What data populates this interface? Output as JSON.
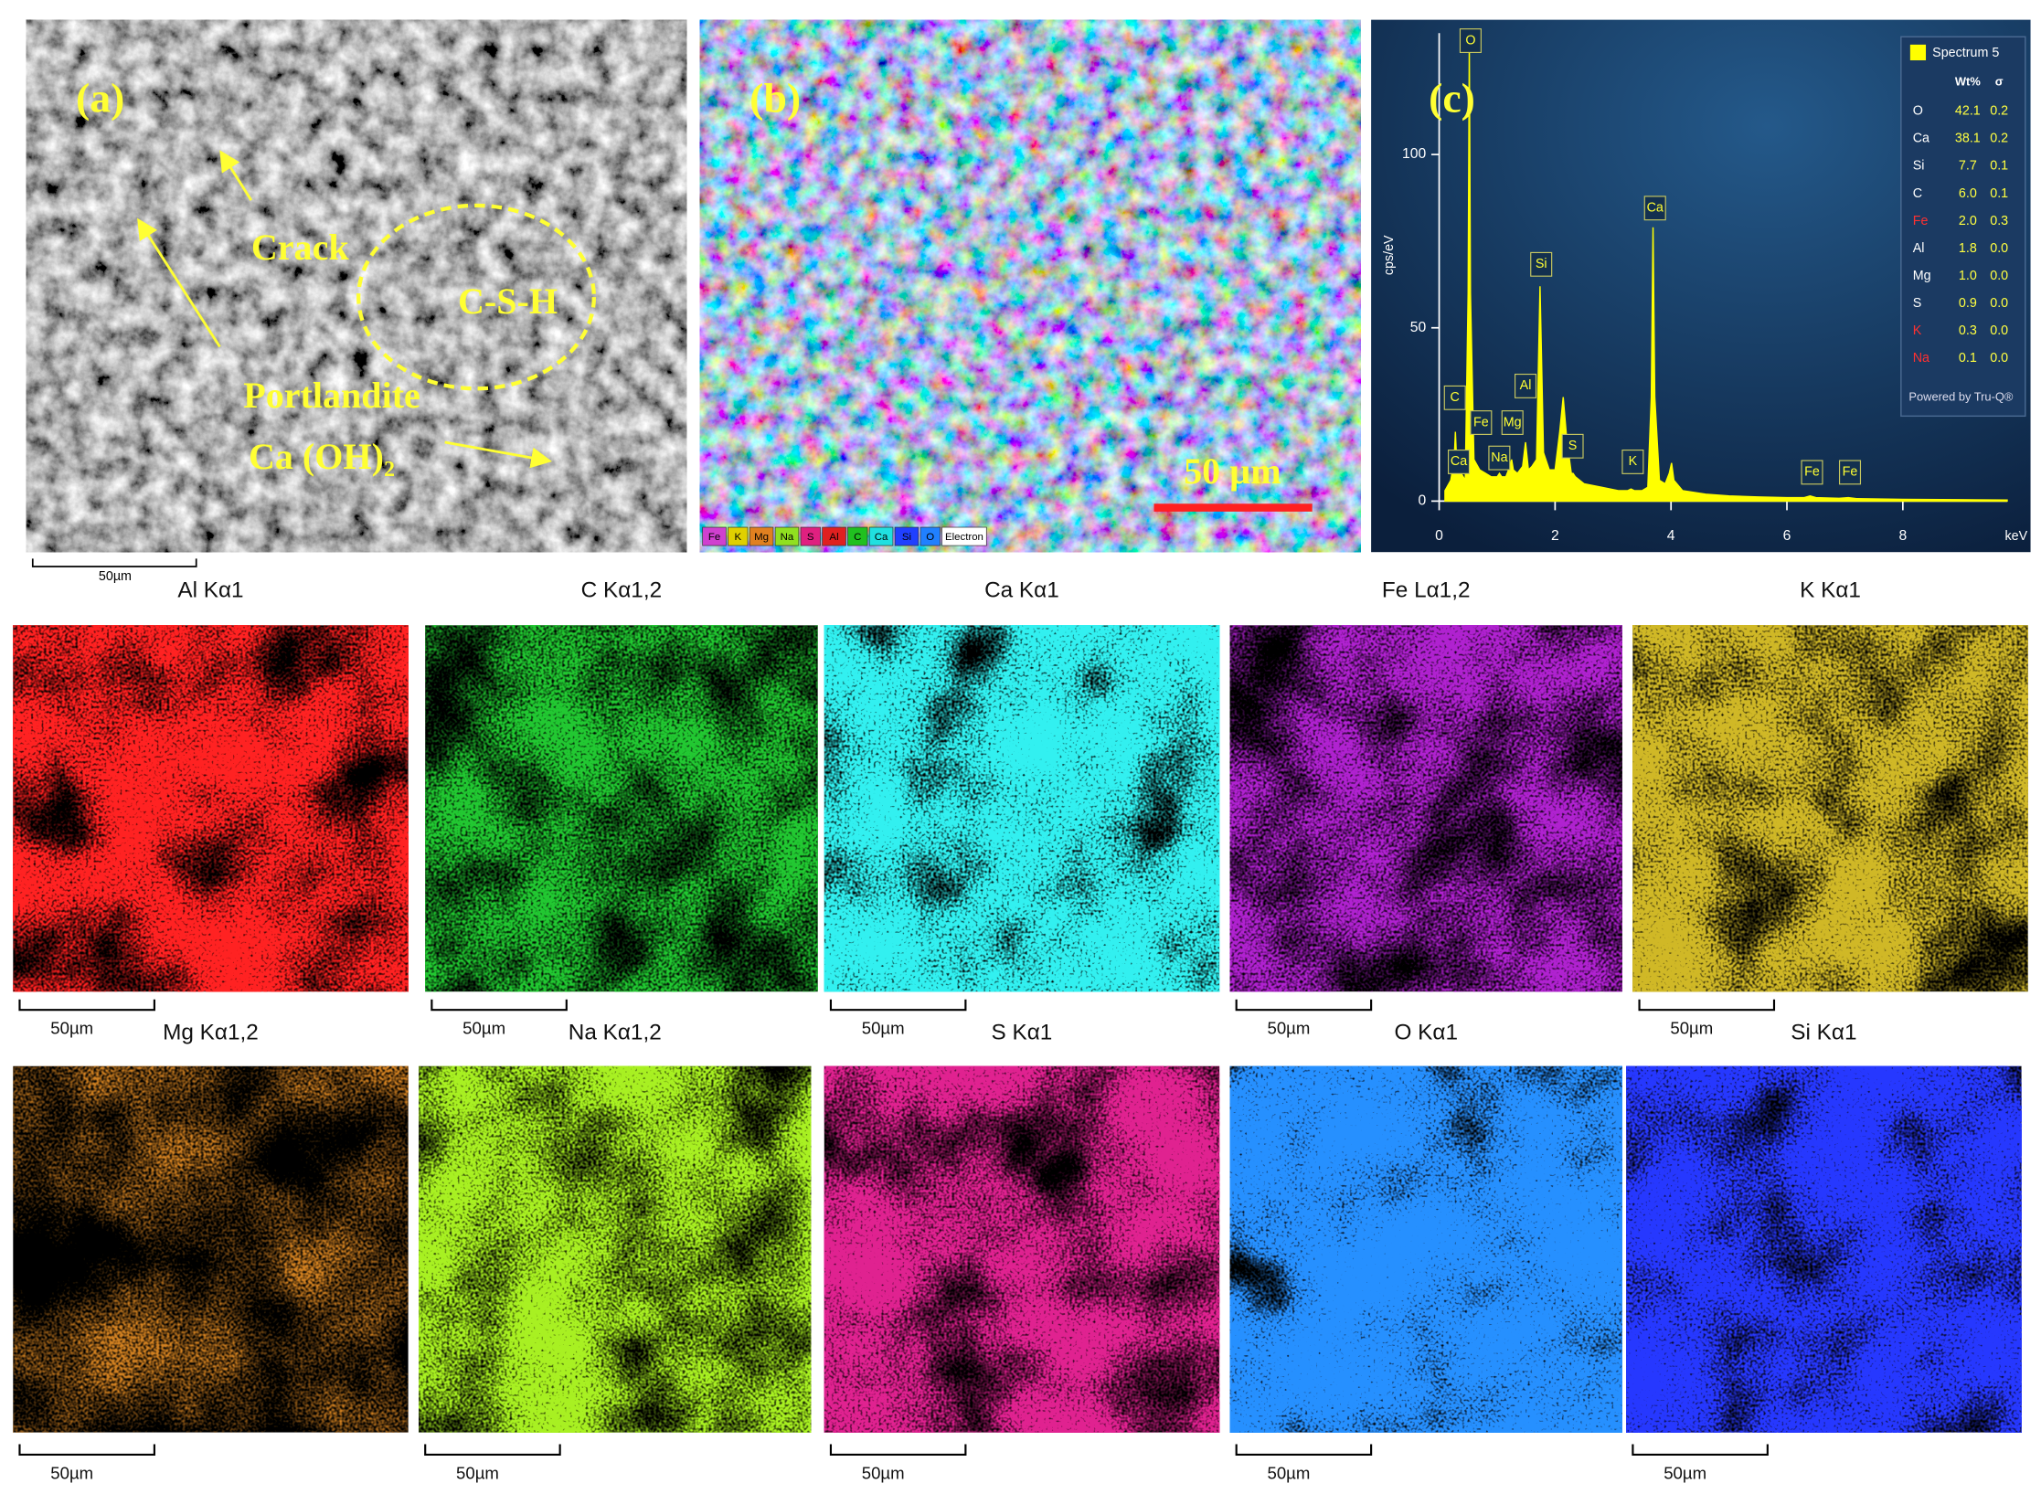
{
  "panel_a": {
    "label": "(a)",
    "crack": "Crack",
    "csh": "C-S-H",
    "portlandite": "Portlandite",
    "formula": "Ca (OH)₂",
    "scale_bar": "50µm"
  },
  "panel_b": {
    "label": "(b)",
    "scale_bar": "50 µm",
    "legend": [
      {
        "name": "Fe",
        "color": "#d040d0"
      },
      {
        "name": "K",
        "color": "#e0d000"
      },
      {
        "name": "Mg",
        "color": "#e08020"
      },
      {
        "name": "Na",
        "color": "#90e020"
      },
      {
        "name": "S",
        "color": "#e02080"
      },
      {
        "name": "Al",
        "color": "#e02020"
      },
      {
        "name": "C",
        "color": "#20c020"
      },
      {
        "name": "Ca",
        "color": "#20e0e0"
      },
      {
        "name": "Si",
        "color": "#2040ff"
      },
      {
        "name": "O",
        "color": "#2080ff"
      },
      {
        "name": "Electron",
        "color": "#ffffff"
      }
    ]
  },
  "panel_c": {
    "label": "(c)"
  },
  "chart_data": {
    "type": "area",
    "x_label": "keV",
    "y_label": "cps/eV",
    "xlim": [
      0,
      9.8
    ],
    "ylim": [
      0,
      135
    ],
    "xticks": [
      0,
      2,
      4,
      6,
      8
    ],
    "yticks": [
      0,
      50,
      100
    ],
    "series": [
      {
        "name": "Spectrum 5",
        "color": "#ffff00",
        "x": [
          0.1,
          0.2,
          0.26,
          0.28,
          0.3,
          0.34,
          0.38,
          0.45,
          0.5,
          0.52,
          0.54,
          0.6,
          0.7,
          0.8,
          0.9,
          1.0,
          1.04,
          1.08,
          1.15,
          1.22,
          1.25,
          1.28,
          1.35,
          1.44,
          1.49,
          1.54,
          1.6,
          1.68,
          1.74,
          1.8,
          1.9,
          2.0,
          2.08,
          2.14,
          2.2,
          2.28,
          2.31,
          2.35,
          2.5,
          2.8,
          3.1,
          3.25,
          3.31,
          3.37,
          3.5,
          3.6,
          3.66,
          3.69,
          3.72,
          3.8,
          3.9,
          3.97,
          4.01,
          4.05,
          4.2,
          4.6,
          5.0,
          5.5,
          6.0,
          6.3,
          6.4,
          6.5,
          6.9,
          7.06,
          7.2,
          8.0,
          9.0,
          9.8
        ],
        "values": [
          3,
          6,
          12,
          20,
          12,
          10,
          8,
          6,
          60,
          133,
          60,
          12,
          9,
          8,
          7,
          7,
          8,
          7,
          7,
          10,
          12,
          9,
          8,
          10,
          17,
          9,
          10,
          12,
          62,
          14,
          9,
          9,
          20,
          30,
          18,
          8,
          8,
          7,
          5,
          4,
          3,
          3,
          3.5,
          3,
          3,
          4,
          30,
          79,
          30,
          6,
          5,
          8,
          11,
          6,
          3,
          2,
          1.5,
          1.2,
          1,
          1,
          1.5,
          1,
          0.8,
          1,
          0.7,
          0.5,
          0.4,
          0.3
        ]
      }
    ],
    "peak_labels": [
      "O",
      "C",
      "Ca",
      "Fe",
      "Na",
      "Mg",
      "Al",
      "Si",
      "S",
      "K",
      "Ca",
      "Fe",
      "Fe"
    ],
    "table": {
      "columns": [
        "Wt%",
        "σ"
      ],
      "rows": [
        {
          "element": "O",
          "wt": "42.1",
          "sigma": "0.2",
          "element_color": "#ffffff"
        },
        {
          "element": "Ca",
          "wt": "38.1",
          "sigma": "0.2",
          "element_color": "#ffffff"
        },
        {
          "element": "Si",
          "wt": "7.7",
          "sigma": "0.1",
          "element_color": "#ffffff"
        },
        {
          "element": "C",
          "wt": "6.0",
          "sigma": "0.1",
          "element_color": "#ffffff"
        },
        {
          "element": "Fe",
          "wt": "2.0",
          "sigma": "0.3",
          "element_color": "#ff3030"
        },
        {
          "element": "Al",
          "wt": "1.8",
          "sigma": "0.0",
          "element_color": "#ffffff"
        },
        {
          "element": "Mg",
          "wt": "1.0",
          "sigma": "0.0",
          "element_color": "#ffffff"
        },
        {
          "element": "S",
          "wt": "0.9",
          "sigma": "0.0",
          "element_color": "#ffffff"
        },
        {
          "element": "K",
          "wt": "0.3",
          "sigma": "0.0",
          "element_color": "#ff3030"
        },
        {
          "element": "Na",
          "wt": "0.1",
          "sigma": "0.0",
          "element_color": "#ff3030"
        }
      ]
    },
    "footer": "Powered by Tru-Q®"
  },
  "maps": [
    {
      "title": "Al Kα1",
      "color": "#ff2020",
      "scale_bar": "50µm"
    },
    {
      "title": "C Kα1,2",
      "color": "#20c830",
      "scale_bar": "50µm"
    },
    {
      "title": "Ca Kα1",
      "color": "#30f0f0",
      "scale_bar": "50µm"
    },
    {
      "title": "Fe Lα1,2",
      "color": "#b020d0",
      "scale_bar": "50µm"
    },
    {
      "title": "K Kα1",
      "color": "#d0b828",
      "scale_bar": "50µm"
    },
    {
      "title": "Mg Kα1,2",
      "color": "#d08020",
      "scale_bar": "50µm"
    },
    {
      "title": "Na Kα1,2",
      "color": "#a8f020",
      "scale_bar": "50µm"
    },
    {
      "title": "S Kα1",
      "color": "#e02090",
      "scale_bar": "50µm"
    },
    {
      "title": "O Kα1",
      "color": "#2890ff",
      "scale_bar": "50µm"
    },
    {
      "title": "Si Kα1",
      "color": "#2838ff",
      "scale_bar": "50µm"
    }
  ]
}
